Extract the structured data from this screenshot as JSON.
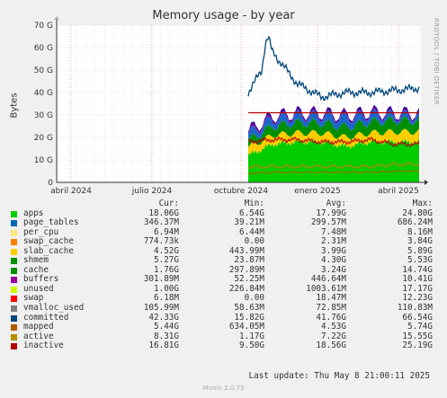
{
  "title": "Memory usage - by year",
  "side_label": "RRDTOOL / TOBI OETIKER",
  "ylabel": "Bytes",
  "colors": {
    "apps": "#00cc00",
    "page_tables": "#0066b3",
    "per_cpu": "#ff8000",
    "swap_cache": "#ffcc00",
    "slab_cache": "#330099",
    "shmem": "#990099",
    "cache": "#ccff00",
    "buffers": "#ff0000",
    "unused": "#808080",
    "swap": "#008f00",
    "vmalloc_used": "#00487d",
    "committed": "#b35a00",
    "mapped": "#b38f00",
    "active": "#6b006b",
    "inactive": "#8fb300"
  },
  "legend": {
    "header": {
      "cur": "Cur:",
      "min": "Min:",
      "avg": "Avg:",
      "max": "Max:"
    },
    "rows": [
      {
        "name": "apps",
        "color": "#00cc00",
        "cur": "18.06G",
        "min": "6.54G",
        "avg": "17.99G",
        "max": "24.80G"
      },
      {
        "name": "page_tables",
        "color": "#0066b3",
        "cur": "346.37M",
        "min": "39.21M",
        "avg": "299.57M",
        "max": "686.24M"
      },
      {
        "name": "per_cpu",
        "color": "#ffe680",
        "cur": "6.94M",
        "min": "6.44M",
        "avg": "7.48M",
        "max": "8.16M"
      },
      {
        "name": "swap_cache",
        "color": "#ff8000",
        "cur": "774.73k",
        "min": "0.00",
        "avg": "2.31M",
        "max": "3.84G"
      },
      {
        "name": "slab_cache",
        "color": "#ffcc00",
        "cur": "4.52G",
        "min": "443.99M",
        "avg": "3.99G",
        "max": "5.89G"
      },
      {
        "name": "shmem",
        "color": "#008f00",
        "cur": "5.27G",
        "min": "23.87M",
        "avg": "4.30G",
        "max": "5.53G"
      },
      {
        "name": "cache",
        "color": "#008f00",
        "cur": "1.76G",
        "min": "297.89M",
        "avg": "3.24G",
        "max": "14.74G"
      },
      {
        "name": "buffers",
        "color": "#990099",
        "cur": "301.89M",
        "min": "52.25M",
        "avg": "446.64M",
        "max": "10.41G"
      },
      {
        "name": "unused",
        "color": "#ccff00",
        "cur": "1.00G",
        "min": "226.84M",
        "avg": "1003.61M",
        "max": "17.17G"
      },
      {
        "name": "swap",
        "color": "#ff0000",
        "cur": "6.18M",
        "min": "0.00",
        "avg": "18.47M",
        "max": "12.23G"
      },
      {
        "name": "vmalloc_used",
        "color": "#808080",
        "cur": "105.99M",
        "min": "58.63M",
        "avg": "72.85M",
        "max": "110.83M"
      },
      {
        "name": "committed",
        "color": "#00487d",
        "cur": "42.33G",
        "min": "15.82G",
        "avg": "41.76G",
        "max": "66.54G"
      },
      {
        "name": "mapped",
        "color": "#b35a00",
        "cur": "5.44G",
        "min": "634.05M",
        "avg": "4.53G",
        "max": "5.74G"
      },
      {
        "name": "active",
        "color": "#b38f00",
        "cur": "8.31G",
        "min": "1.17G",
        "avg": "7.22G",
        "max": "15.55G"
      },
      {
        "name": "inactive",
        "color": "#b30000",
        "cur": "16.81G",
        "min": "9.50G",
        "avg": "18.56G",
        "max": "25.19G"
      }
    ]
  },
  "last_update": "Last update:  Thu May  8 21:00:11 2025",
  "footer": "Munin 2.0.73",
  "chart_data": {
    "type": "area",
    "title": "Memory usage - by year",
    "ylabel": "Bytes",
    "ylim": [
      0,
      70
    ],
    "yunit": "G",
    "yticks": [
      "0",
      "10 G",
      "20 G",
      "30 G",
      "40 G",
      "50 G",
      "60 G",
      "70 G"
    ],
    "xticks": [
      "abril 2024",
      "julio 2024",
      "octubre 2024",
      "enero 2025",
      "abril 2025"
    ],
    "x": [
      "2024-10",
      "2024-11",
      "2024-12",
      "2025-01",
      "2025-02",
      "2025-03",
      "2025-04",
      "2025-05"
    ],
    "series": [
      {
        "name": "apps",
        "values": [
          12,
          17,
          18,
          18,
          16,
          18,
          18,
          18
        ]
      },
      {
        "name": "slab_cache",
        "values": [
          3.5,
          4,
          4,
          4,
          4,
          4,
          4.5,
          4.5
        ]
      },
      {
        "name": "shmem",
        "values": [
          3,
          4,
          4.5,
          4.5,
          4.5,
          5,
          5,
          5
        ]
      },
      {
        "name": "cache",
        "values": [
          3,
          3,
          3,
          3,
          4,
          3,
          2,
          2
        ]
      },
      {
        "name": "buffers",
        "values": [
          0.5,
          0.5,
          0.4,
          0.4,
          0.4,
          0.4,
          0.3,
          0.3
        ]
      },
      {
        "name": "unused",
        "values": [
          1,
          1,
          1,
          1,
          1,
          1,
          1,
          1
        ]
      },
      {
        "name": "committed",
        "values": [
          40,
          58,
          44,
          38,
          40,
          40,
          41,
          42
        ]
      },
      {
        "name": "inactive",
        "values": [
          18,
          19,
          19,
          18,
          18,
          19,
          17,
          17
        ]
      },
      {
        "name": "active",
        "values": [
          7,
          7,
          7,
          7,
          7,
          7,
          8,
          8
        ]
      },
      {
        "name": "mapped",
        "values": [
          4,
          4.5,
          4.5,
          4.5,
          4.5,
          4.5,
          5,
          5
        ]
      }
    ],
    "grid": true
  }
}
